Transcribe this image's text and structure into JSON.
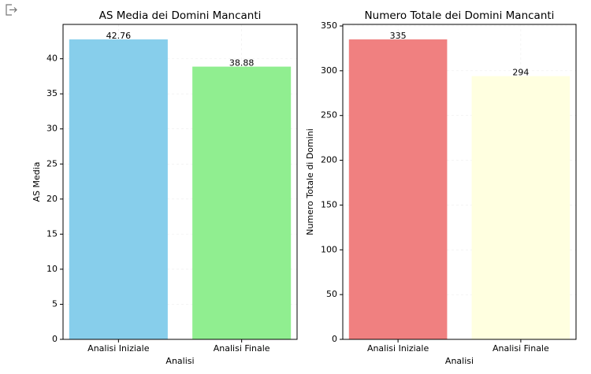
{
  "chart_data": [
    {
      "type": "bar",
      "title": "AS Media dei Domini Mancanti",
      "x_label": "Analisi",
      "y_label": "AS Media",
      "categories": [
        "Analisi Iniziale",
        "Analisi Finale"
      ],
      "values": [
        42.76,
        38.88
      ],
      "colors": [
        "#87ceeb",
        "#90ee90"
      ],
      "ylim": [
        0,
        44.898
      ],
      "yticks": [
        0,
        5,
        10,
        15,
        20,
        25,
        30,
        35,
        40
      ],
      "grid": true
    },
    {
      "type": "bar",
      "title": "Numero Totale dei Domini Mancanti",
      "x_label": "Analisi",
      "y_label": "Numero Totale di Domini",
      "categories": [
        "Analisi Iniziale",
        "Analisi Finale"
      ],
      "values": [
        335,
        294
      ],
      "colors": [
        "#f08080",
        "#ffffe0"
      ],
      "ylim": [
        0,
        351.75
      ],
      "yticks": [
        0,
        50,
        100,
        150,
        200,
        250,
        300,
        350
      ],
      "grid": true
    }
  ]
}
